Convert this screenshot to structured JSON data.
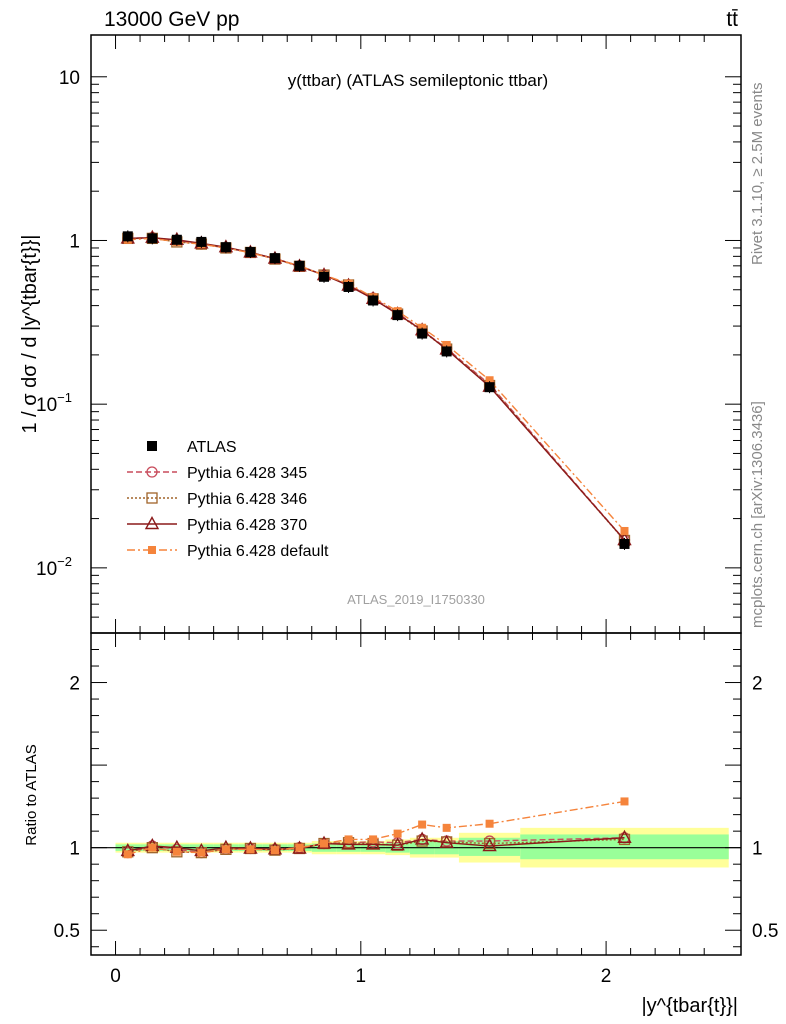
{
  "header": {
    "left": "13000 GeV pp",
    "right": "tt̄"
  },
  "side": {
    "rivet": "Rivet 3.1.10, ≥ 2.5M events",
    "mcplots": "mcplots.cern.ch [arXiv:1306.3436]"
  },
  "watermark": "ATLAS_2019_I1750330",
  "chart_data": [
    {
      "type": "line",
      "title": "y(ttbar) (ATLAS semileptonic ttbar)",
      "ylabel": "1 / σ dσ / d |y^{tbar{t}}|",
      "yscale": "log",
      "xlim": [
        -0.1,
        2.55
      ],
      "ylim": [
        0.004,
        18
      ],
      "x": [
        0.05,
        0.15,
        0.25,
        0.35,
        0.45,
        0.55,
        0.65,
        0.75,
        0.85,
        0.95,
        1.05,
        1.15,
        1.25,
        1.35,
        1.525,
        2.075
      ],
      "bin_edges": [
        0,
        0.1,
        0.2,
        0.3,
        0.4,
        0.5,
        0.6,
        0.7,
        0.8,
        0.9,
        1.0,
        1.1,
        1.2,
        1.3,
        1.4,
        1.65,
        2.5
      ],
      "y_tick_labels": [
        "10^{-2}",
        "10^{-1}",
        "1",
        "10"
      ],
      "series": [
        {
          "name": "ATLAS",
          "color": "#000000",
          "marker": "square",
          "values": [
            1.06,
            1.03,
            1.01,
            0.98,
            0.91,
            0.85,
            0.78,
            0.7,
            0.6,
            0.52,
            0.43,
            0.35,
            0.27,
            0.21,
            0.127,
            0.014
          ]
        },
        {
          "name": "Pythia 6.428 345",
          "color": "#c84c5c",
          "marker": "circle",
          "dash": "6,3",
          "values": [
            1.03,
            1.04,
            1.0,
            0.95,
            0.9,
            0.845,
            0.775,
            0.7,
            0.615,
            0.535,
            0.445,
            0.36,
            0.283,
            0.219,
            0.132,
            0.0148
          ]
        },
        {
          "name": "Pythia 6.428 346",
          "color": "#a0642a",
          "marker": "square-open",
          "dash": "2,2",
          "values": [
            1.03,
            1.03,
            0.98,
            0.95,
            0.9,
            0.845,
            0.77,
            0.695,
            0.615,
            0.535,
            0.44,
            0.355,
            0.28,
            0.217,
            0.13,
            0.0147
          ]
        },
        {
          "name": "Pythia 6.428 370",
          "color": "#8b1a1a",
          "marker": "triangle",
          "dash": "",
          "values": [
            1.03,
            1.04,
            1.01,
            0.96,
            0.91,
            0.845,
            0.775,
            0.695,
            0.615,
            0.53,
            0.44,
            0.355,
            0.283,
            0.216,
            0.128,
            0.0148
          ]
        },
        {
          "name": "Pythia 6.428 default",
          "color": "#f5843c",
          "marker": "square-filled",
          "dash": "8,3,2,3",
          "values": [
            1.01,
            1.03,
            0.98,
            0.95,
            0.9,
            0.84,
            0.77,
            0.7,
            0.615,
            0.545,
            0.45,
            0.37,
            0.293,
            0.23,
            0.14,
            0.0168
          ]
        }
      ]
    },
    {
      "type": "line",
      "ylabel": "Ratio to ATLAS",
      "xlabel": "|y^{tbar{t}}|",
      "xlim": [
        -0.1,
        2.55
      ],
      "ylim": [
        0.35,
        2.3
      ],
      "x_tick_labels": [
        "0",
        "1",
        "2"
      ],
      "y_tick_labels": [
        "0.5",
        "1",
        "2"
      ],
      "bin_edges": [
        0,
        0.1,
        0.2,
        0.3,
        0.4,
        0.5,
        0.6,
        0.7,
        0.8,
        0.9,
        1.0,
        1.1,
        1.2,
        1.3,
        1.4,
        1.65,
        2.5
      ],
      "band_stat": [
        [
          0.98,
          1.02
        ],
        [
          0.98,
          1.02
        ],
        [
          0.98,
          1.02
        ],
        [
          0.98,
          1.02
        ],
        [
          0.98,
          1.02
        ],
        [
          0.98,
          1.02
        ],
        [
          0.98,
          1.02
        ],
        [
          0.98,
          1.02
        ],
        [
          0.975,
          1.025
        ],
        [
          0.975,
          1.025
        ],
        [
          0.975,
          1.025
        ],
        [
          0.97,
          1.03
        ],
        [
          0.96,
          1.04
        ],
        [
          0.96,
          1.04
        ],
        [
          0.95,
          1.06
        ],
        [
          0.93,
          1.08
        ]
      ],
      "band_total": [
        [
          0.97,
          1.03
        ],
        [
          0.97,
          1.03
        ],
        [
          0.97,
          1.03
        ],
        [
          0.97,
          1.03
        ],
        [
          0.97,
          1.03
        ],
        [
          0.97,
          1.03
        ],
        [
          0.97,
          1.03
        ],
        [
          0.97,
          1.03
        ],
        [
          0.96,
          1.04
        ],
        [
          0.96,
          1.04
        ],
        [
          0.96,
          1.04
        ],
        [
          0.955,
          1.05
        ],
        [
          0.94,
          1.06
        ],
        [
          0.94,
          1.06
        ],
        [
          0.91,
          1.09
        ],
        [
          0.88,
          1.12
        ]
      ],
      "series": [
        {
          "name": "Pythia 6.428 345",
          "values": [
            0.97,
            1.01,
            0.99,
            0.97,
            0.99,
            0.995,
            0.99,
            1.0,
            1.025,
            1.03,
            1.035,
            1.03,
            1.05,
            1.04,
            1.04,
            1.06
          ]
        },
        {
          "name": "Pythia 6.428 346",
          "values": [
            0.975,
            1.0,
            0.975,
            0.97,
            0.99,
            0.995,
            0.985,
            0.995,
            1.025,
            1.03,
            1.025,
            1.015,
            1.04,
            1.035,
            1.025,
            1.05
          ]
        },
        {
          "name": "Pythia 6.428 370",
          "values": [
            0.98,
            1.01,
            1.0,
            0.98,
            1.0,
            0.995,
            0.99,
            0.995,
            1.025,
            1.02,
            1.02,
            1.015,
            1.05,
            1.03,
            1.01,
            1.06
          ]
        },
        {
          "name": "Pythia 6.428 default",
          "values": [
            0.96,
            1.0,
            0.975,
            0.97,
            0.99,
            0.99,
            0.985,
            1.0,
            1.025,
            1.05,
            1.05,
            1.085,
            1.14,
            1.12,
            1.145,
            1.28
          ]
        }
      ]
    }
  ]
}
